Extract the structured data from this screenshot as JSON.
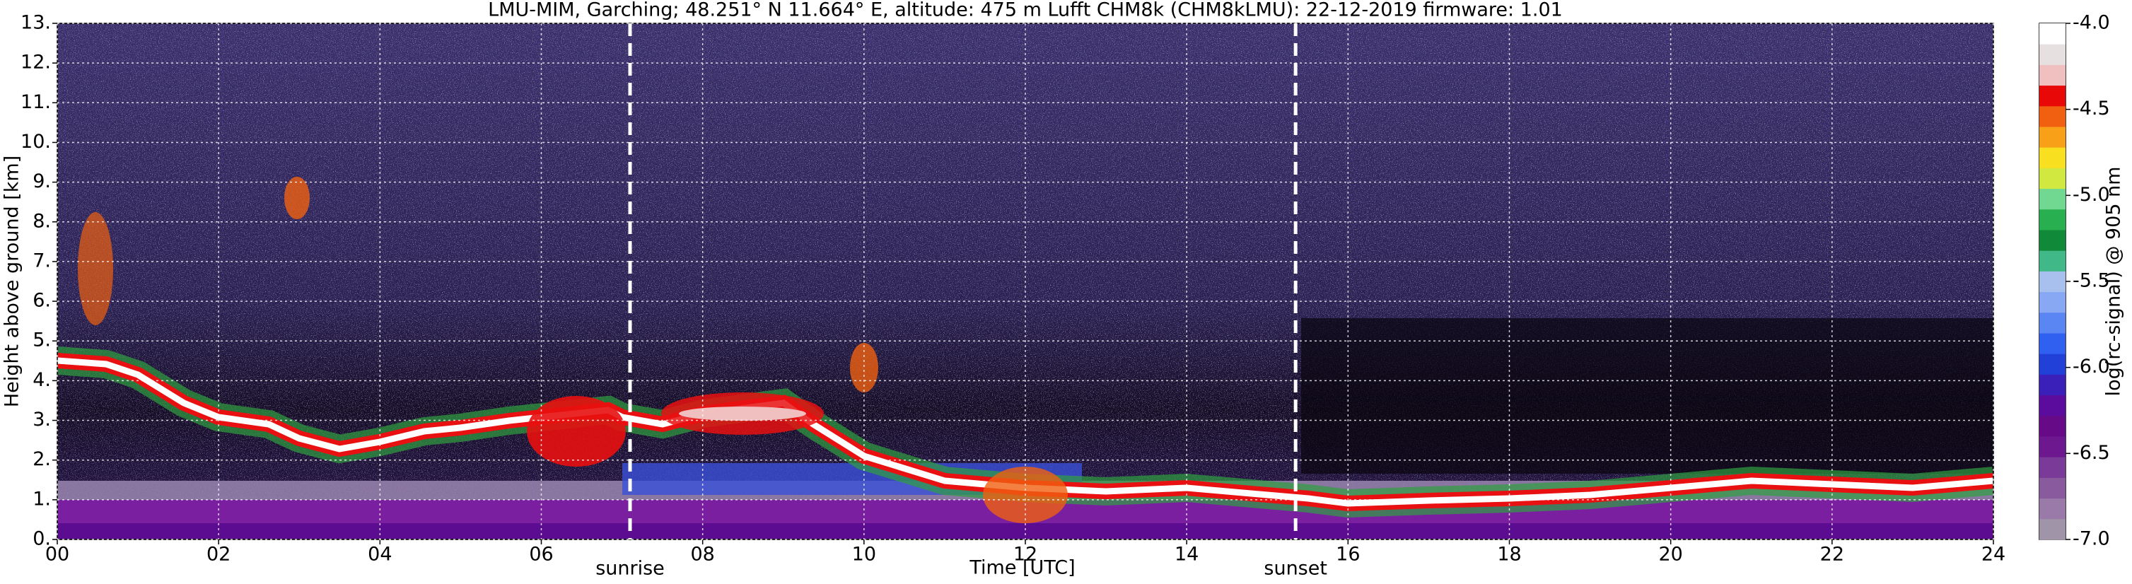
{
  "chart_data": {
    "type": "heatmap",
    "title": "LMU-MIM, Garching; 48.251° N 11.664° E, altitude: 475 m    Lufft CHM8k (CHM8kLMU): 22-12-2019    firmware: 1.01",
    "x_label": "Time [UTC]",
    "y_label": "Height above ground [km]",
    "colorbar_label": "log(rc-signal) @ 905 nm",
    "xlim": [
      0,
      24
    ],
    "xticks": [
      {
        "value": 0,
        "label": "00"
      },
      {
        "value": 2,
        "label": "02"
      },
      {
        "value": 4,
        "label": "04"
      },
      {
        "value": 6,
        "label": "06"
      },
      {
        "value": 8,
        "label": "08"
      },
      {
        "value": 10,
        "label": "10"
      },
      {
        "value": 12,
        "label": "12"
      },
      {
        "value": 14,
        "label": "14"
      },
      {
        "value": 16,
        "label": "16"
      },
      {
        "value": 18,
        "label": "18"
      },
      {
        "value": 20,
        "label": "20"
      },
      {
        "value": 22,
        "label": "22"
      },
      {
        "value": 24,
        "label": "24"
      }
    ],
    "ylim": [
      0,
      13
    ],
    "yticks": [
      {
        "value": 0,
        "label": "0."
      },
      {
        "value": 1,
        "label": "1."
      },
      {
        "value": 2,
        "label": "2."
      },
      {
        "value": 3,
        "label": "3."
      },
      {
        "value": 4,
        "label": "4."
      },
      {
        "value": 5,
        "label": "5."
      },
      {
        "value": 6,
        "label": "6."
      },
      {
        "value": 7,
        "label": "7."
      },
      {
        "value": 8,
        "label": "8."
      },
      {
        "value": 9,
        "label": "9."
      },
      {
        "value": 10,
        "label": "10."
      },
      {
        "value": 11,
        "label": "11."
      },
      {
        "value": 12,
        "label": "12."
      },
      {
        "value": 13,
        "label": "13."
      }
    ],
    "clim": [
      -7.0,
      -4.0
    ],
    "cticks": [
      {
        "value": -7.0,
        "label": "-7.0"
      },
      {
        "value": -6.5,
        "label": "-6.5"
      },
      {
        "value": -6.0,
        "label": "-6.0"
      },
      {
        "value": -5.5,
        "label": "-5.5"
      },
      {
        "value": -5.0,
        "label": "-5.0"
      },
      {
        "value": -4.5,
        "label": "-4.5"
      },
      {
        "value": -4.0,
        "label": "-4.0"
      }
    ],
    "colorbar_colors": [
      "#a094a8",
      "#9a7aa8",
      "#8a5a9e",
      "#7a3a98",
      "#6e1890",
      "#660a88",
      "#5c0c9c",
      "#3a20b8",
      "#2040d8",
      "#3060f0",
      "#5a86f4",
      "#88a8f4",
      "#a8c0ee",
      "#40b888",
      "#108a38",
      "#28b050",
      "#70d890",
      "#d0e840",
      "#f8e020",
      "#f8a018",
      "#f06010",
      "#e80808",
      "#f0c0c0",
      "#e6e0e0",
      "#ffffff"
    ],
    "grid": true,
    "annotations": [
      {
        "text": "sunrise",
        "x": 7.1
      },
      {
        "text": "sunset",
        "x": 15.35
      }
    ]
  }
}
